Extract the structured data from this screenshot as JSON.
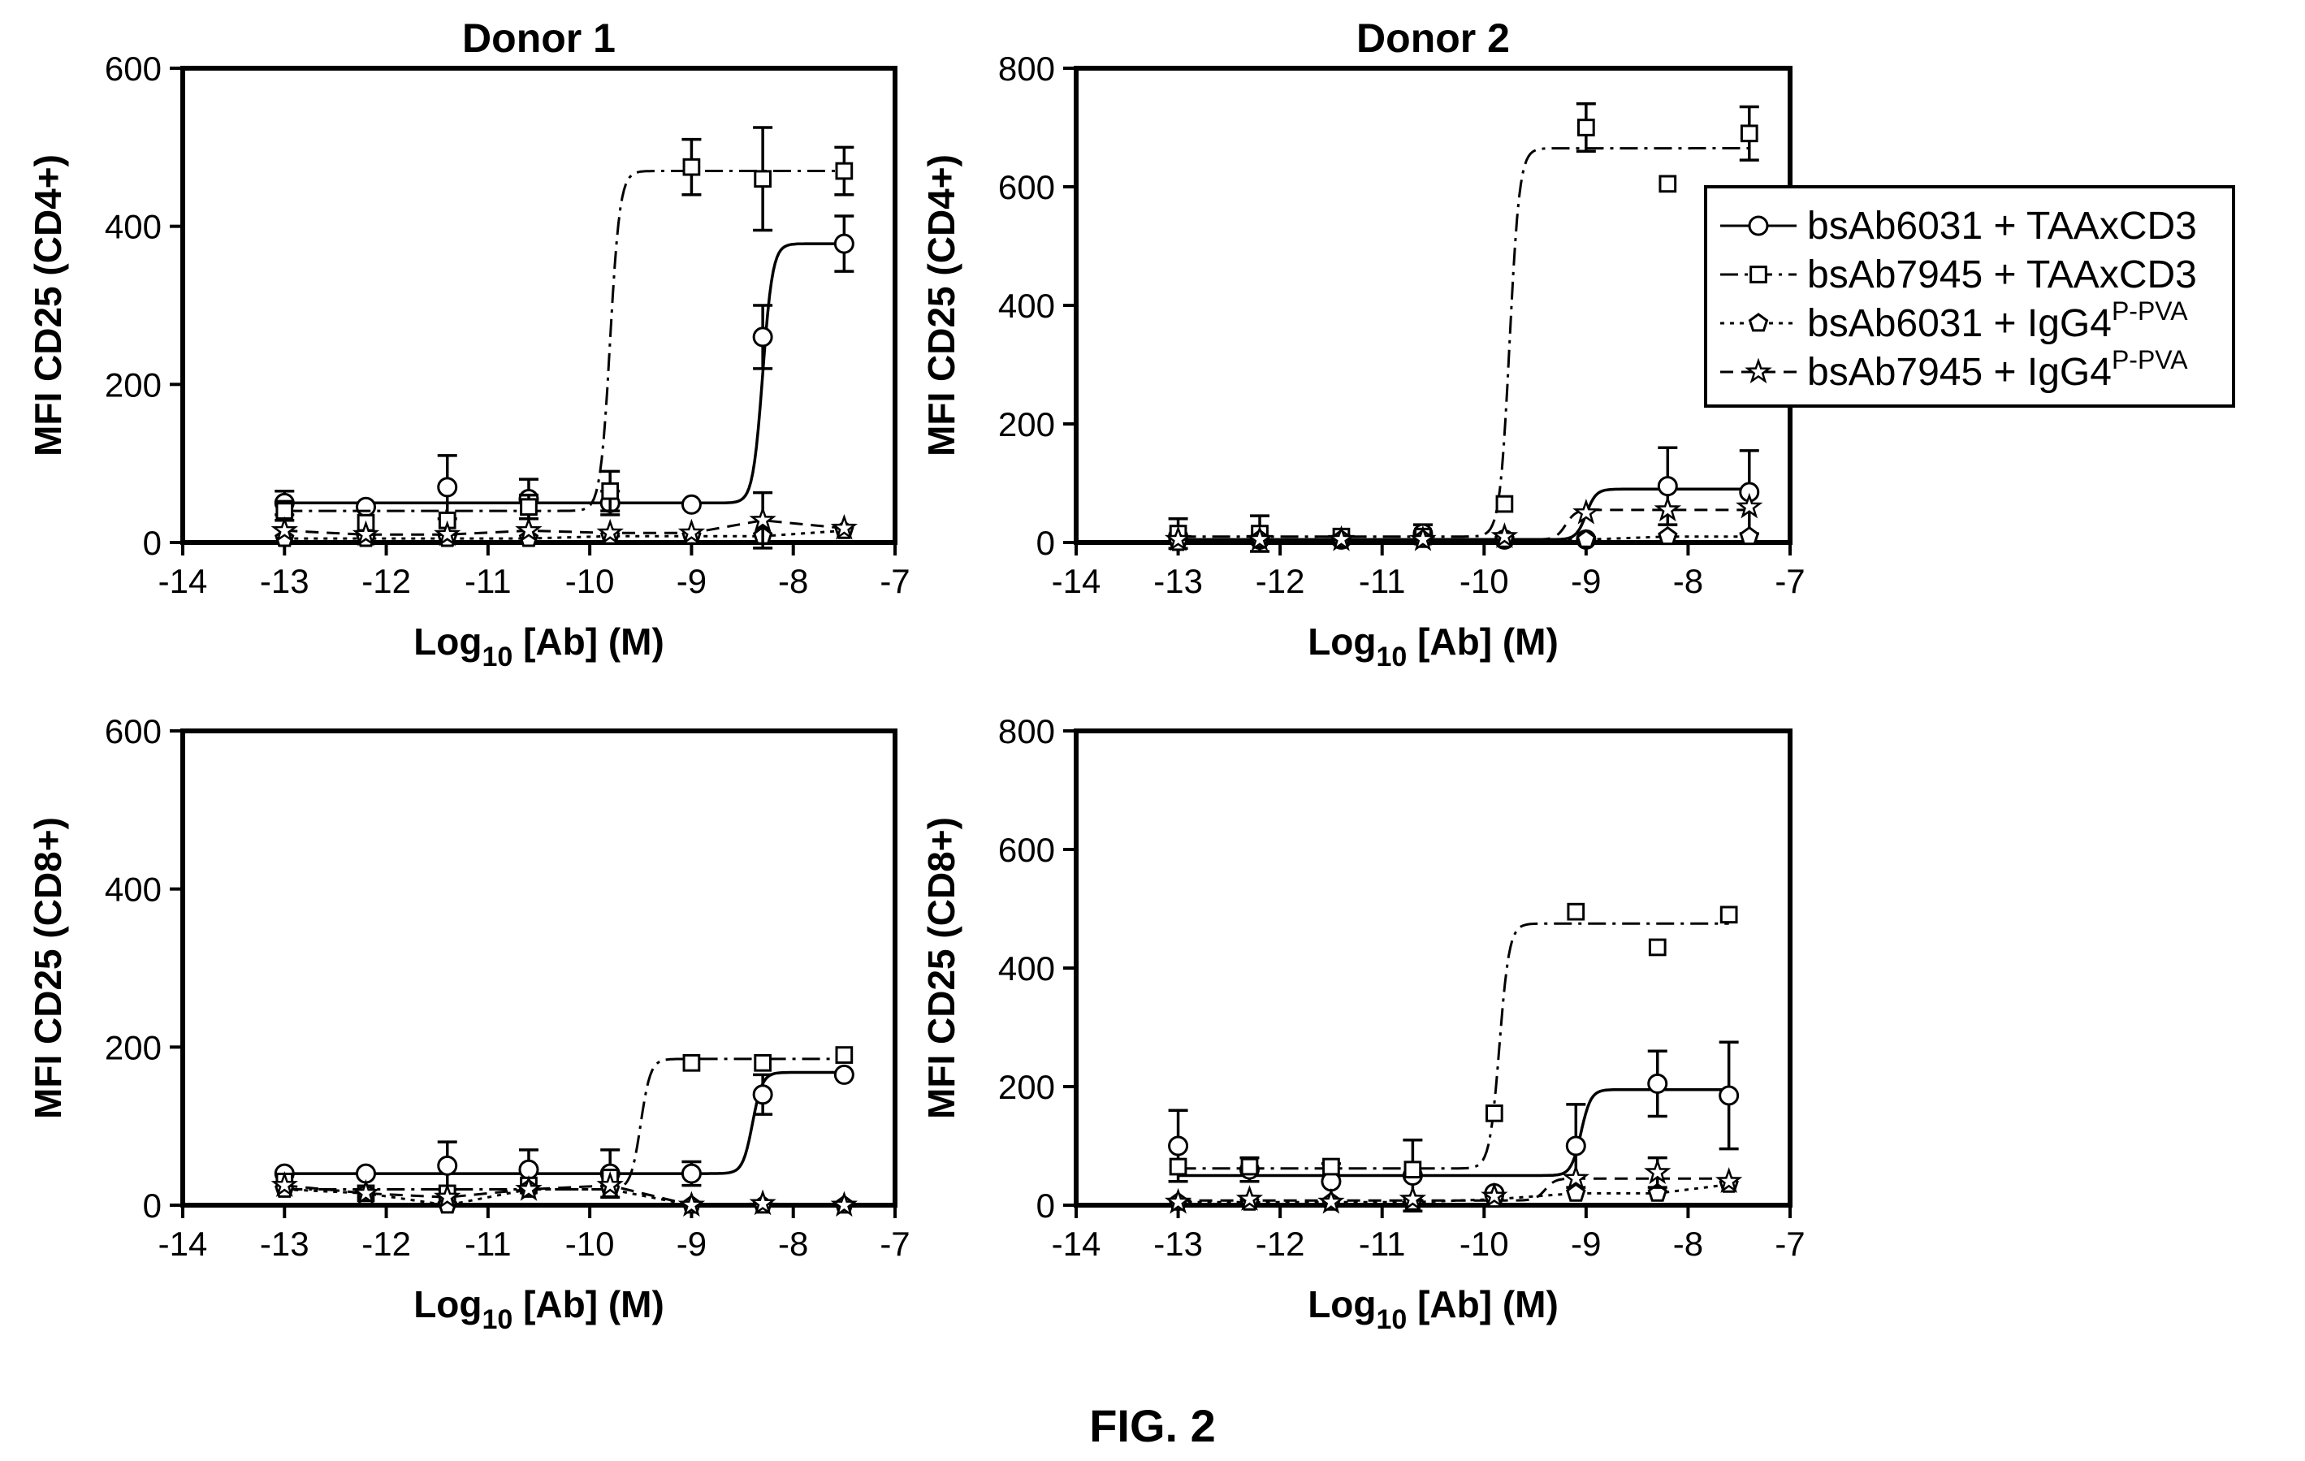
{
  "figure": {
    "caption": "FIG. 2"
  },
  "legend": {
    "entries": [
      {
        "label": "bsAb6031 + TAAxCD3",
        "sup": "",
        "marker": "circle",
        "dash": "solid"
      },
      {
        "label": "bsAb7945 + TAAxCD3",
        "sup": "",
        "marker": "square",
        "dash": "dashdot"
      },
      {
        "label": "bsAb6031 + IgG4",
        "sup": "P-PVA",
        "marker": "pentagon",
        "dash": "dotted"
      },
      {
        "label": "bsAb7945 + IgG4",
        "sup": "P-PVA",
        "marker": "star",
        "dash": "dashed"
      }
    ]
  },
  "chart_data": [
    {
      "type": "line",
      "title": "Donor 1",
      "xlabel": "Log10 [Ab] (M)",
      "ylabel": "MFI CD25 (CD4+)",
      "xlim": [
        -14,
        -7
      ],
      "ylim": [
        0,
        600
      ],
      "xticks": [
        -14,
        -13,
        -12,
        -11,
        -10,
        -9,
        -8,
        -7
      ],
      "yticks": [
        0,
        200,
        400,
        600
      ],
      "series": [
        {
          "name": "bsAb6031 + TAAxCD3",
          "x": [
            -13,
            -12.2,
            -11.4,
            -10.6,
            -9.8,
            -9,
            -8.3,
            -7.5
          ],
          "y": [
            50,
            45,
            70,
            55,
            50,
            48,
            260,
            378
          ],
          "err": [
            15,
            0,
            40,
            25,
            15,
            0,
            40,
            35
          ],
          "fit": {
            "bottom": 50,
            "top": 378,
            "ec50": -8.3
          }
        },
        {
          "name": "bsAb7945 + TAAxCD3",
          "x": [
            -13,
            -12.2,
            -11.4,
            -10.6,
            -9.8,
            -9,
            -8.3,
            -7.5
          ],
          "y": [
            40,
            25,
            28,
            45,
            65,
            475,
            460,
            470
          ],
          "err": [
            12,
            0,
            0,
            15,
            25,
            35,
            65,
            30
          ],
          "fit": {
            "bottom": 40,
            "top": 470,
            "ec50": -9.8
          }
        },
        {
          "name": "bsAb6031 + IgG4P-PVA",
          "x": [
            -13,
            -12.2,
            -11.4,
            -10.6,
            -9.8,
            -9,
            -8.3,
            -7.5
          ],
          "y": [
            5,
            5,
            5,
            5,
            8,
            8,
            8,
            15
          ],
          "err": [
            0,
            0,
            0,
            0,
            0,
            0,
            0,
            0
          ]
        },
        {
          "name": "bsAb7945 + IgG4P-PVA",
          "x": [
            -13,
            -12.2,
            -11.4,
            -10.6,
            -9.8,
            -9,
            -8.3,
            -7.5
          ],
          "y": [
            15,
            10,
            10,
            15,
            12,
            12,
            28,
            18
          ],
          "err": [
            0,
            0,
            0,
            0,
            0,
            0,
            35,
            0
          ]
        }
      ]
    },
    {
      "type": "line",
      "title": "Donor 2",
      "xlabel": "Log10 [Ab] (M)",
      "ylabel": "MFI CD25 (CD4+)",
      "xlim": [
        -14,
        -7
      ],
      "ylim": [
        0,
        800
      ],
      "xticks": [
        -14,
        -13,
        -12,
        -11,
        -10,
        -9,
        -8,
        -7
      ],
      "yticks": [
        0,
        200,
        400,
        600,
        800
      ],
      "series": [
        {
          "name": "bsAb6031 + TAAxCD3",
          "x": [
            -13,
            -12.2,
            -11.4,
            -10.6,
            -9.8,
            -9,
            -8.2,
            -7.4
          ],
          "y": [
            10,
            5,
            5,
            15,
            5,
            5,
            95,
            85
          ],
          "err": [
            0,
            0,
            0,
            15,
            0,
            0,
            65,
            70
          ],
          "fit": {
            "bottom": 5,
            "top": 90,
            "ec50": -9.0
          }
        },
        {
          "name": "bsAb7945 + TAAxCD3",
          "x": [
            -13,
            -12.2,
            -11.4,
            -10.6,
            -9.8,
            -9,
            -8.2,
            -7.4
          ],
          "y": [
            15,
            15,
            10,
            10,
            65,
            700,
            605,
            690
          ],
          "err": [
            25,
            30,
            0,
            0,
            0,
            40,
            0,
            45
          ],
          "fit": {
            "bottom": 10,
            "top": 665,
            "ec50": -9.75
          }
        },
        {
          "name": "bsAb6031 + IgG4P-PVA",
          "x": [
            -13,
            -12.2,
            -11.4,
            -10.6,
            -9.8,
            -9,
            -8.2,
            -7.4
          ],
          "y": [
            0,
            5,
            5,
            5,
            5,
            5,
            10,
            10
          ],
          "err": [
            0,
            0,
            0,
            0,
            0,
            0,
            0,
            0
          ]
        },
        {
          "name": "bsAb7945 + IgG4P-PVA",
          "x": [
            -13,
            -12.2,
            -11.4,
            -10.6,
            -9.8,
            -9,
            -8.2,
            -7.4
          ],
          "y": [
            5,
            5,
            5,
            5,
            10,
            50,
            55,
            60
          ],
          "err": [
            0,
            0,
            0,
            0,
            0,
            0,
            0,
            0
          ],
          "fit": {
            "bottom": 5,
            "top": 55,
            "ec50": -9.2
          }
        }
      ]
    },
    {
      "type": "line",
      "title": "",
      "xlabel": "Log10 [Ab] (M)",
      "ylabel": "MFI CD25 (CD8+)",
      "xlim": [
        -14,
        -7
      ],
      "ylim": [
        0,
        600
      ],
      "xticks": [
        -14,
        -13,
        -12,
        -11,
        -10,
        -9,
        -8,
        -7
      ],
      "yticks": [
        0,
        200,
        400,
        600
      ],
      "series": [
        {
          "name": "bsAb6031 + TAAxCD3",
          "x": [
            -13,
            -12.2,
            -11.4,
            -10.6,
            -9.8,
            -9,
            -8.3,
            -7.5
          ],
          "y": [
            40,
            40,
            50,
            45,
            40,
            40,
            140,
            165
          ],
          "err": [
            0,
            0,
            30,
            25,
            30,
            15,
            25,
            0
          ],
          "fit": {
            "bottom": 40,
            "top": 168,
            "ec50": -8.4
          }
        },
        {
          "name": "bsAb7945 + TAAxCD3",
          "x": [
            -13,
            -12.2,
            -11.4,
            -10.6,
            -9.8,
            -9,
            -8.3,
            -7.5
          ],
          "y": [
            30,
            15,
            15,
            25,
            35,
            180,
            180,
            190
          ],
          "err": [
            0,
            0,
            0,
            0,
            0,
            0,
            0,
            0
          ],
          "fit": {
            "bottom": 20,
            "top": 185,
            "ec50": -9.5
          }
        },
        {
          "name": "bsAb6031 + IgG4P-PVA",
          "x": [
            -13,
            -12.2,
            -11.4,
            -10.6,
            -9.8,
            -9,
            -8.3,
            -7.5
          ],
          "y": [
            20,
            15,
            0,
            20,
            20,
            0,
            0,
            0
          ],
          "err": [
            0,
            0,
            0,
            0,
            0,
            0,
            0,
            0
          ]
        },
        {
          "name": "bsAb7945 + IgG4P-PVA",
          "x": [
            -13,
            -12.2,
            -11.4,
            -10.6,
            -9.8,
            -9,
            -8.3,
            -7.5
          ],
          "y": [
            25,
            15,
            10,
            20,
            25,
            0,
            2,
            0
          ],
          "err": [
            0,
            0,
            0,
            0,
            0,
            0,
            0,
            0
          ]
        }
      ]
    },
    {
      "type": "line",
      "title": "",
      "xlabel": "Log10 [Ab] (M)",
      "ylabel": "MFI CD25 (CD8+)",
      "xlim": [
        -14,
        -7
      ],
      "ylim": [
        0,
        800
      ],
      "xticks": [
        -14,
        -13,
        -12,
        -11,
        -10,
        -9,
        -8,
        -7
      ],
      "yticks": [
        0,
        200,
        400,
        600,
        800
      ],
      "series": [
        {
          "name": "bsAb6031 + TAAxCD3",
          "x": [
            -13,
            -12.3,
            -11.5,
            -10.7,
            -9.9,
            -9.1,
            -8.3,
            -7.6
          ],
          "y": [
            100,
            60,
            40,
            50,
            20,
            100,
            205,
            185
          ],
          "err": [
            60,
            20,
            30,
            60,
            0,
            70,
            55,
            90
          ],
          "fit": {
            "bottom": 50,
            "top": 195,
            "ec50": -9.05
          }
        },
        {
          "name": "bsAb7945 + TAAxCD3",
          "x": [
            -13,
            -12.3,
            -11.5,
            -10.7,
            -9.9,
            -9.1,
            -8.3,
            -7.6
          ],
          "y": [
            65,
            65,
            65,
            60,
            155,
            495,
            435,
            490
          ],
          "err": [
            0,
            0,
            0,
            0,
            0,
            0,
            0,
            0
          ],
          "fit": {
            "bottom": 62,
            "top": 475,
            "ec50": -9.85
          }
        },
        {
          "name": "bsAb6031 + IgG4P-PVA",
          "x": [
            -13,
            -12.3,
            -11.5,
            -10.7,
            -9.9,
            -9.1,
            -8.3,
            -7.6
          ],
          "y": [
            5,
            5,
            5,
            5,
            10,
            20,
            20,
            35
          ],
          "err": [
            0,
            0,
            0,
            0,
            0,
            0,
            0,
            0
          ]
        },
        {
          "name": "bsAb7945 + IgG4P-PVA",
          "x": [
            -13,
            -12.3,
            -11.5,
            -10.7,
            -9.9,
            -9.1,
            -8.3,
            -7.6
          ],
          "y": [
            5,
            10,
            5,
            10,
            15,
            45,
            55,
            40
          ],
          "err": [
            0,
            0,
            0,
            0,
            0,
            0,
            25,
            0
          ],
          "fit": {
            "bottom": 8,
            "top": 45,
            "ec50": -9.4
          }
        }
      ]
    }
  ]
}
